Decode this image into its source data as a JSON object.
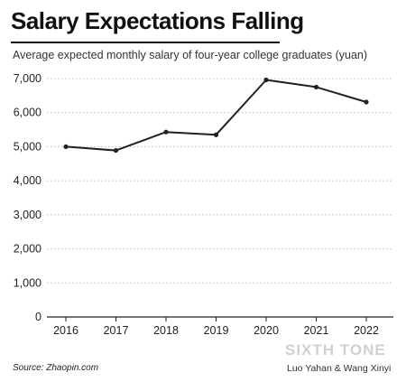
{
  "header": {
    "title": "Salary Expectations Falling",
    "subtitle": "Average expected monthly salary of four-year college graduates (yuan)"
  },
  "footer": {
    "source": "Source: Zhaopin.com",
    "brand": "SIXTH TONE",
    "credit": "Luo Yahan & Wang Xinyi"
  },
  "chart_data": {
    "type": "line",
    "title": "Salary Expectations Falling",
    "subtitle": "Average expected monthly salary of four-year college graduates (yuan)",
    "xlabel": "",
    "ylabel": "",
    "x": [
      "2016",
      "2017",
      "2018",
      "2019",
      "2020",
      "2021",
      "2022"
    ],
    "series": [
      {
        "values": [
          5000,
          4890,
          5430,
          5350,
          6960,
          6750,
          6310
        ]
      }
    ],
    "ylim": [
      0,
      7000
    ],
    "yticks": [
      0,
      1000,
      2000,
      3000,
      4000,
      5000,
      6000,
      7000
    ],
    "ytick_labels": [
      "0",
      "1,000",
      "2,000",
      "3,000",
      "4,000",
      "5,000",
      "6,000",
      "7,000"
    ],
    "grid": "horizontal dotted",
    "legend": "none",
    "colors": {
      "line": "#222222",
      "grid": "#bdbdbd",
      "axis": "#222222"
    }
  }
}
